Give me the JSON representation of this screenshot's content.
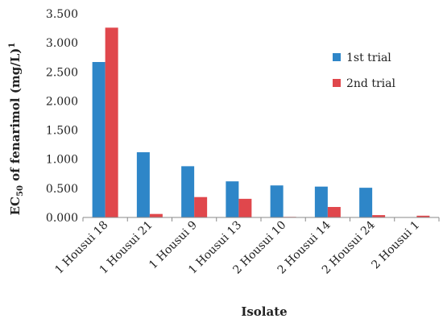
{
  "chart_data": {
    "type": "bar",
    "categories": [
      "1 Housui 18",
      "1 Housui 21",
      "1 Housui 9",
      "1 Housui 13",
      "2 Housui 10",
      "2 Housui 14",
      "2 Housui 24",
      "2 Housui 1"
    ],
    "series": [
      {
        "name": "1st trial",
        "color": "#2e86c8",
        "values": [
          2.67,
          1.12,
          0.88,
          0.62,
          0.55,
          0.53,
          0.51,
          0.0
        ]
      },
      {
        "name": "2nd trial",
        "color": "#e0474c",
        "values": [
          3.26,
          0.06,
          0.35,
          0.32,
          0.01,
          0.18,
          0.04,
          0.03
        ]
      }
    ],
    "xlabel": "Isolate",
    "ylabel": "EC",
    "ylabel_sub": "50",
    "ylabel_rest": " of fenarimol (mg/L)",
    "ylabel_sup": "1",
    "ylim": [
      0,
      3.5
    ],
    "yticks": [
      "0.000",
      "0.500",
      "1.000",
      "1.500",
      "2.000",
      "2.500",
      "3.000",
      "3.500"
    ],
    "grid": false,
    "legend_position": "top-right"
  }
}
